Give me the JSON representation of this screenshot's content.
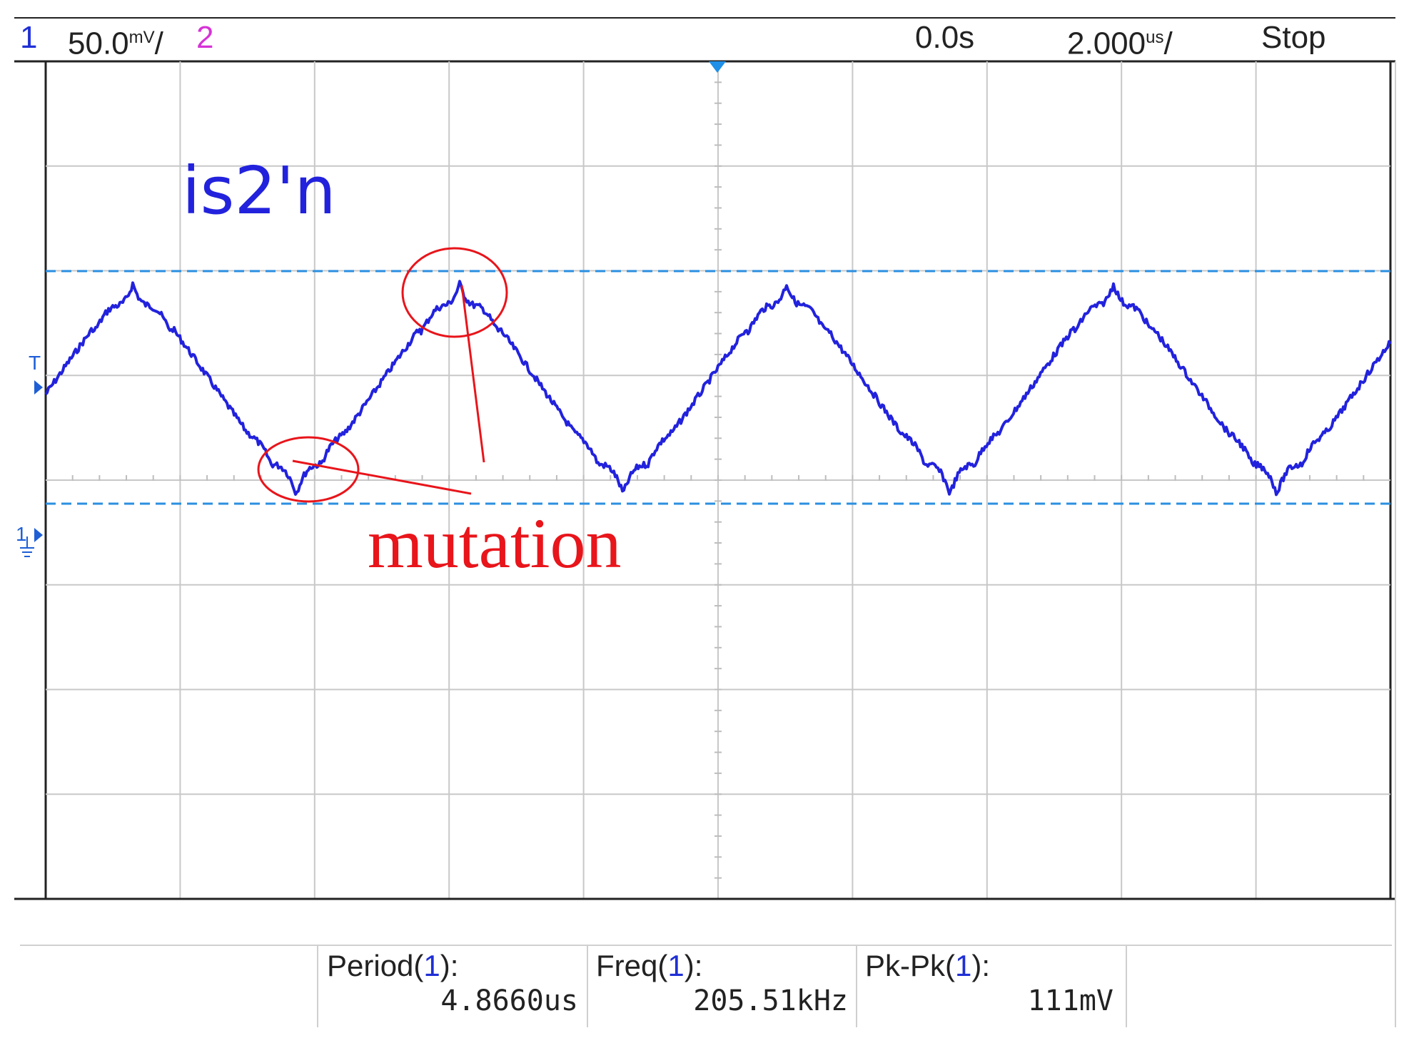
{
  "header": {
    "ch1_number": "1",
    "ch1_scale": "50.0",
    "ch1_scale_unit": "mV",
    "ch2_number": "2",
    "time_position": "0.0s",
    "timebase": "2.000",
    "timebase_unit": "us",
    "run_state": "Stop"
  },
  "markers": {
    "trigger_level": "T",
    "ch1_ground": "1"
  },
  "trace": {
    "label": "is2'n",
    "color": "#2222dd"
  },
  "annotation": {
    "label": "mutation",
    "color": "#e8151b"
  },
  "measurements": [
    {
      "name": "Period",
      "channel": "1",
      "value": "4.8660us"
    },
    {
      "name": "Freq",
      "channel": "1",
      "value": "205.51kHz"
    },
    {
      "name": "Pk-Pk",
      "channel": "1",
      "value": "111mV"
    }
  ],
  "chart_data": {
    "type": "line",
    "grid": true,
    "divisions": {
      "x": 10,
      "y": 8
    },
    "x_scale_per_div": "2.000us",
    "y_scale_per_div": "50.0mV",
    "period_us": 4.866,
    "peak_to_peak_mV": 111,
    "cursor_lines": "upper and lower dashed at waveform max and min"
  },
  "colors": {
    "grid": "#c8c8c8",
    "cursor": "#2b8fe0",
    "trace": "#2222dd",
    "annotation": "#e8151b"
  }
}
